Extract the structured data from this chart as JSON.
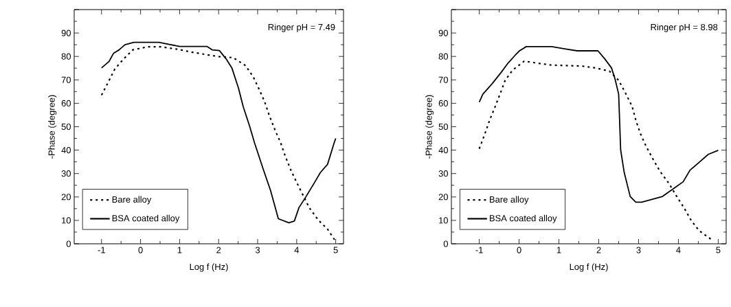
{
  "chart_data": [
    {
      "type": "line",
      "xlabel": "Log f (Hz)",
      "ylabel": "-Phase (degree)",
      "annotations": [
        "Ringer pH = 7.49"
      ],
      "xlim": [
        -1.7,
        5.2
      ],
      "ylim": [
        0,
        100
      ],
      "xticks": [
        -1,
        0,
        1,
        2,
        3,
        4,
        5
      ],
      "yticks": [
        0,
        10,
        20,
        30,
        40,
        50,
        60,
        70,
        80,
        90,
        {
          "value": 100,
          "label": null
        }
      ],
      "legend": "bottom left",
      "series": [
        {
          "name": "Bare alloy",
          "color": "#000000",
          "line_style": "dotted",
          "x": [
            -1,
            -0.82,
            -0.66,
            -0.43,
            -0.2,
            0.18,
            0.53,
            0.94,
            1.29,
            1.64,
            2.02,
            2.37,
            2.69,
            2.89,
            3.04,
            3.18,
            3.3,
            3.45,
            3.59,
            3.71,
            3.85,
            4.0,
            4.32,
            4.55,
            4.79,
            5.0
          ],
          "values": [
            63.5,
            69.3,
            74.6,
            79,
            82.8,
            84.1,
            84.1,
            83.1,
            81.9,
            80.9,
            79.9,
            79.5,
            76.1,
            71.2,
            65.9,
            60.6,
            54.7,
            48.4,
            43.1,
            37.3,
            31.5,
            26.2,
            15.5,
            10.2,
            6.3,
            1
          ]
        },
        {
          "name": "BSA coated alloy",
          "color": "#000000",
          "line_style": "solid",
          "x": [
            -1,
            -0.81,
            -0.69,
            -0.55,
            -0.4,
            -0.17,
            0.47,
            0.71,
            1.0,
            1.7,
            1.84,
            2.02,
            2.19,
            2.34,
            2.51,
            2.63,
            2.8,
            2.92,
            3.15,
            3.33,
            3.53,
            3.8,
            3.94,
            4.06,
            4.23,
            4.44,
            4.61,
            4.79,
            4.96,
            5.0
          ],
          "values": [
            75.1,
            77.8,
            81.4,
            82.8,
            85,
            86,
            86,
            85.2,
            84.3,
            84.3,
            82.8,
            82.5,
            79,
            75.1,
            66.4,
            58.6,
            49.9,
            43.1,
            31.5,
            22.8,
            10.7,
            9.0,
            9.7,
            15.5,
            19.9,
            25.7,
            30.5,
            33.9,
            43.1,
            45
          ]
        }
      ]
    },
    {
      "type": "line",
      "xlabel": "Log f (Hz)",
      "ylabel": "-Phase (degree)",
      "annotations": [
        "Ringer pH = 8.98"
      ],
      "xlim": [
        -1.7,
        5.2
      ],
      "ylim": [
        0,
        100
      ],
      "xticks": [
        -1,
        0,
        1,
        2,
        3,
        4,
        5
      ],
      "yticks": [
        0,
        10,
        20,
        30,
        40,
        50,
        60,
        70,
        80,
        90,
        {
          "value": 100,
          "label": null
        }
      ],
      "legend": "bottom left",
      "series": [
        {
          "name": "Bare alloy",
          "color": "#000000",
          "line_style": "dotted",
          "x": [
            -1,
            -0.86,
            -0.74,
            -0.6,
            -0.48,
            -0.35,
            -0.16,
            0.13,
            0.47,
            0.82,
            1.57,
            1.92,
            2.27,
            2.5,
            2.67,
            2.84,
            2.93,
            3.05,
            3.19,
            3.36,
            3.54,
            3.77,
            3.94,
            4.14,
            4.32,
            4.52,
            4.84
          ],
          "values": [
            40.6,
            46.9,
            52.8,
            58.6,
            63.9,
            69.8,
            74.2,
            78,
            77.1,
            76.3,
            75.9,
            75.1,
            73.7,
            69.8,
            64.4,
            58.6,
            52.8,
            46.9,
            41.6,
            36.2,
            30.9,
            25.6,
            20.7,
            15.4,
            10,
            5.6,
            1.7
          ]
        },
        {
          "name": "BSA coated alloy",
          "color": "#000000",
          "line_style": "solid",
          "x": [
            -1,
            -0.91,
            -0.68,
            -0.45,
            -0.28,
            -0.1,
            0.01,
            0.18,
            0.82,
            1.17,
            1.46,
            1.98,
            2.15,
            2.32,
            2.41,
            2.5,
            2.55,
            2.64,
            2.79,
            2.93,
            3.08,
            3.6,
            3.88,
            4.12,
            4.29,
            4.52,
            4.75,
            5.0
          ],
          "values": [
            60.5,
            63.9,
            68.3,
            73.2,
            77.1,
            80.5,
            82.4,
            84.2,
            84.2,
            83.2,
            82.4,
            82.4,
            79,
            75.1,
            70.3,
            63.9,
            40.1,
            30.4,
            20.2,
            17.8,
            17.8,
            20.2,
            23.6,
            26.5,
            31.4,
            34.8,
            38.2,
            39.9
          ]
        }
      ]
    }
  ]
}
